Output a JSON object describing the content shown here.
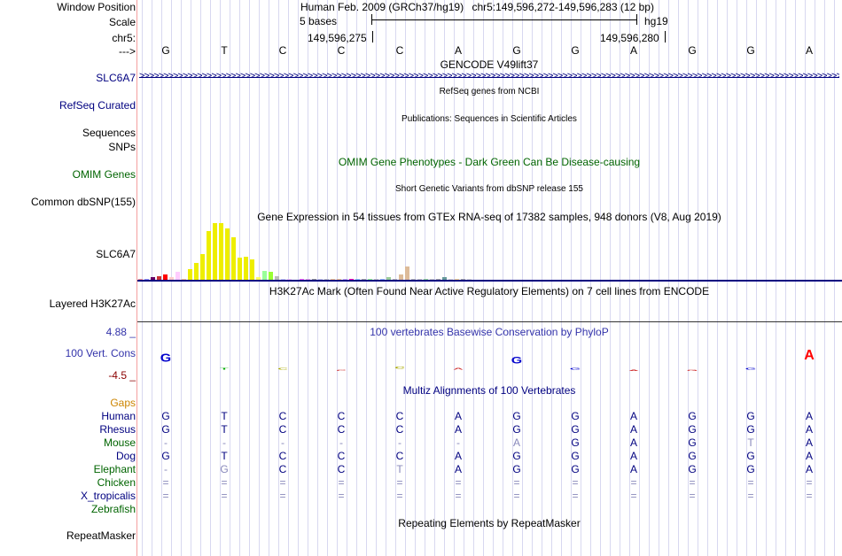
{
  "header": {
    "labels": {
      "window_position": "Window Position",
      "scale": "Scale",
      "chrom": "chr5:",
      "arrow": "--->"
    },
    "assembly": "Human Feb. 2009 (GRCh37/hg19)",
    "position": "chr5:149,596,272-149,596,283 (12 bp)",
    "scale_text": "5 bases",
    "db": "hg19",
    "coord_left": "149,596,275",
    "coord_right": "149,596,280"
  },
  "bases": [
    "G",
    "T",
    "C",
    "C",
    "C",
    "A",
    "G",
    "G",
    "A",
    "G",
    "G",
    "A"
  ],
  "tracks": {
    "gencode": {
      "label": "SLC6A7",
      "title": "GENCODE V49lift37"
    },
    "refseq": {
      "label": "RefSeq Curated",
      "title": "RefSeq genes from NCBI"
    },
    "publications": {
      "label": "Sequences",
      "title": "Publications: Sequences in Scientific Articles"
    },
    "snps_label": "SNPs",
    "omim": {
      "label": "OMIM Genes",
      "title": "OMIM Gene Phenotypes - Dark Green Can Be Disease-causing"
    },
    "dbsnp": {
      "label": "Common dbSNP(155)",
      "title": "Short Genetic Variants from dbSNP release 155"
    },
    "gtex": {
      "label": "SLC6A7",
      "title": "Gene Expression in 54 tissues from GTEx RNA-seq of 17382 samples, 948 donors (V8, Aug 2019)"
    },
    "h3k27ac": {
      "label": "Layered H3K27Ac",
      "title": "H3K27Ac Mark (Often Found Near Active Regulatory Elements) on 7 cell lines from ENCODE"
    },
    "cons": {
      "label": "100 Vert. Cons",
      "ymax": "4.88 _",
      "ymin": "-4.5 _",
      "title": "100 vertebrates Basewise Conservation by PhyloP"
    },
    "multiz": {
      "title": "Multiz Alignments of 100 Vertebrates"
    },
    "repeatmasker": {
      "label": "RepeatMasker",
      "title": "Repeating Elements by RepeatMasker"
    }
  },
  "gtex_values": [
    1,
    1,
    2,
    3,
    4,
    2,
    6,
    1,
    8,
    13,
    20,
    38,
    44,
    44,
    40,
    33,
    17,
    18,
    16,
    2,
    7,
    6,
    3,
    1,
    0,
    0,
    0,
    1,
    1,
    1,
    0,
    0,
    0,
    0,
    0,
    0,
    1,
    1,
    0,
    1,
    2,
    1,
    4,
    10,
    1,
    0,
    0,
    0,
    0,
    2,
    0,
    1,
    0,
    0
  ],
  "gtex_colors": [
    "#ff9999",
    "#9999ff",
    "#660066",
    "#cc3333",
    "#ff0000",
    "#ffcccc",
    "#ffccff",
    "#ffcc99",
    "#eeee00",
    "#eeee00",
    "#eeee00",
    "#eeee00",
    "#eeee00",
    "#eeee00",
    "#eeee00",
    "#eeee00",
    "#eeee00",
    "#eeee00",
    "#eeee00",
    "#ffff66",
    "#99ff99",
    "#99ff33",
    "#bbbbbb",
    "#ccccff",
    "#ffccff",
    "#ffffff",
    "#ff66ff",
    "#eeaaee",
    "#999999",
    "#ccccee",
    "#cccccc",
    "#ffcc99",
    "#ffcc99",
    "#ccaaff",
    "#ff00bb",
    "#99ccff",
    "#aaaaaa",
    "#99ff99",
    "#cccccc",
    "#99bbff",
    "#99cc99",
    "#bbbbbb",
    "#ddbb99",
    "#ddbb99",
    "#bbbbbb",
    "#cccccc",
    "#99dd99",
    "#cccccc",
    "#aaaaaa",
    "#669999",
    "#dddddd",
    "#ffdd99",
    "#aaaaaa",
    "#dddddd"
  ],
  "alignment": {
    "gaps_label": "Gaps",
    "species": [
      {
        "name": "Human",
        "color": "#000080",
        "seq": [
          "G",
          "T",
          "C",
          "C",
          "C",
          "A",
          "G",
          "G",
          "A",
          "G",
          "G",
          "A"
        ]
      },
      {
        "name": "Rhesus",
        "color": "#000080",
        "seq": [
          "G",
          "T",
          "C",
          "C",
          "C",
          "A",
          "G",
          "G",
          "A",
          "G",
          "G",
          "A"
        ]
      },
      {
        "name": "Mouse",
        "color": "#006400",
        "seq": [
          "-",
          "-",
          "-",
          "-",
          "-",
          "-",
          "A",
          "G",
          "A",
          "G",
          "T",
          "A"
        ]
      },
      {
        "name": "Dog",
        "color": "#000080",
        "seq": [
          "G",
          "T",
          "C",
          "C",
          "C",
          "A",
          "G",
          "G",
          "A",
          "G",
          "G",
          "A"
        ]
      },
      {
        "name": "Elephant",
        "color": "#006400",
        "seq": [
          "-",
          "G",
          "C",
          "C",
          "T",
          "A",
          "G",
          "G",
          "A",
          "G",
          "G",
          "A"
        ]
      },
      {
        "name": "Chicken",
        "color": "#006400",
        "seq": [
          "=",
          "=",
          "=",
          "=",
          "=",
          "=",
          "=",
          "=",
          "=",
          "=",
          "=",
          "="
        ]
      },
      {
        "name": "X_tropicalis",
        "color": "#000080",
        "seq": [
          "=",
          "=",
          "=",
          "=",
          "=",
          "=",
          "=",
          "=",
          "=",
          "=",
          "=",
          "="
        ]
      },
      {
        "name": "Zebrafish",
        "color": "#006400",
        "seq": [
          "",
          "",
          "",
          "",
          "",
          "",
          "",
          "",
          "",
          "",
          "",
          ""
        ]
      }
    ]
  },
  "colors": {
    "label_blue": "#000080",
    "label_green": "#006400",
    "gaps_orange": "#cc8400",
    "cons_red": "#8b0000",
    "cons_blue": "#3333aa",
    "dim": "#8888bb"
  }
}
